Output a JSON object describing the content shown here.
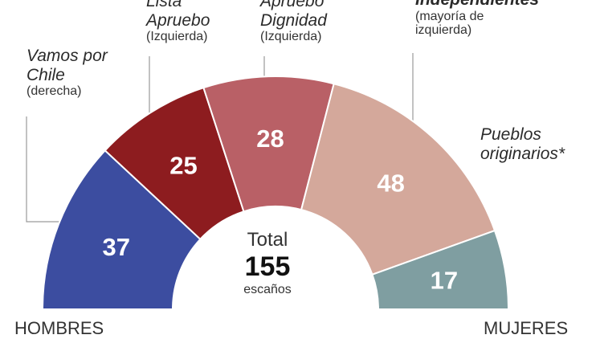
{
  "chart_data": {
    "type": "pie",
    "variant": "semicircle-parliament",
    "total": {
      "label": "Total",
      "value": 155,
      "unit": "escaños"
    },
    "segments": [
      {
        "name": "Vamos por Chile",
        "note": "(derecha)",
        "value": 37,
        "color": "#3c4da0"
      },
      {
        "name": "Lista Apruebo",
        "note": "(Izquierda)",
        "value": 25,
        "color": "#8d1c1f"
      },
      {
        "name": "Apruebo Dignidad",
        "note": "(Izquierda)",
        "value": 28,
        "color": "#b96066"
      },
      {
        "name": "Independientes",
        "note": "(mayoría de izquierda)",
        "value": 48,
        "color": "#d4a89b"
      },
      {
        "name": "Pueblos originarios*",
        "note": "",
        "value": 17,
        "color": "#7f9ea1"
      }
    ],
    "left_label": "HOMBRES",
    "right_label": "MUJERES"
  }
}
